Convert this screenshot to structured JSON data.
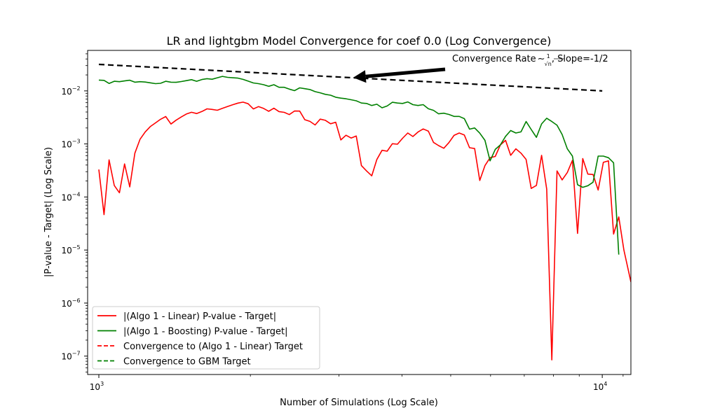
{
  "chart_data": {
    "type": "line",
    "title": "LR and lightgbm Model Convergence for coef 0.0 (Log Convergence)",
    "xlabel": "Number of Simulations (Log Scale)",
    "ylabel": "|P-value - Target| (Log Scale)",
    "xscale": "log",
    "yscale": "log",
    "xlim": [
      950,
      11400
    ],
    "ylim": [
      4.5e-08,
      0.058
    ],
    "grid": false,
    "legend_position": "lower-left",
    "x_ticks": [
      {
        "value": 1000,
        "base": "10",
        "exp": "3"
      },
      {
        "value": 10000,
        "base": "10",
        "exp": "4"
      }
    ],
    "y_ticks": [
      {
        "value": 1e-07,
        "base": "10",
        "exp": "−7"
      },
      {
        "value": 1e-06,
        "base": "10",
        "exp": "−6"
      },
      {
        "value": 1e-05,
        "base": "10",
        "exp": "−5"
      },
      {
        "value": 0.0001,
        "base": "10",
        "exp": "−4"
      },
      {
        "value": 0.001,
        "base": "10",
        "exp": "−3"
      },
      {
        "value": 0.01,
        "base": "10",
        "exp": "−2"
      }
    ],
    "series": [
      {
        "name": "|(Algo 1 - Linear) P-value - Target|",
        "color": "#ff0000",
        "style": "solid",
        "points": [
          [
            1000,
            0.00033
          ],
          [
            1024,
            4.65e-05
          ],
          [
            1048,
            0.0005
          ],
          [
            1073,
            0.000165
          ],
          [
            1099,
            0.00012
          ],
          [
            1125,
            0.00042
          ],
          [
            1152,
            0.000155
          ],
          [
            1179,
            0.00067
          ],
          [
            1207,
            0.00122
          ],
          [
            1236,
            0.00168
          ],
          [
            1265,
            0.00212
          ],
          [
            1296,
            0.0025
          ],
          [
            1326,
            0.00292
          ],
          [
            1358,
            0.00328
          ],
          [
            1391,
            0.00237
          ],
          [
            1424,
            0.0028
          ],
          [
            1458,
            0.00322
          ],
          [
            1492,
            0.00366
          ],
          [
            1528,
            0.00395
          ],
          [
            1564,
            0.00374
          ],
          [
            1602,
            0.00409
          ],
          [
            1640,
            0.00458
          ],
          [
            1679,
            0.00448
          ],
          [
            1719,
            0.00432
          ],
          [
            1760,
            0.00468
          ],
          [
            1802,
            0.00508
          ],
          [
            1845,
            0.00548
          ],
          [
            1889,
            0.00588
          ],
          [
            1934,
            0.00614
          ],
          [
            1980,
            0.00573
          ],
          [
            2027,
            0.00457
          ],
          [
            2075,
            0.00505
          ],
          [
            2125,
            0.00467
          ],
          [
            2175,
            0.00412
          ],
          [
            2227,
            0.00472
          ],
          [
            2280,
            0.00408
          ],
          [
            2335,
            0.00394
          ],
          [
            2390,
            0.00357
          ],
          [
            2447,
            0.00417
          ],
          [
            2506,
            0.00416
          ],
          [
            2565,
            0.00286
          ],
          [
            2626,
            0.00266
          ],
          [
            2689,
            0.00228
          ],
          [
            2753,
            0.00293
          ],
          [
            2819,
            0.00279
          ],
          [
            2886,
            0.0024
          ],
          [
            2955,
            0.00257
          ],
          [
            3025,
            0.00119
          ],
          [
            3097,
            0.00146
          ],
          [
            3171,
            0.00129
          ],
          [
            3246,
            0.00141
          ],
          [
            3324,
            0.00039
          ],
          [
            3403,
            0.00031
          ],
          [
            3484,
            0.00025
          ],
          [
            3567,
            0.00051
          ],
          [
            3652,
            0.00076
          ],
          [
            3739,
            0.00073
          ],
          [
            3828,
            0.00101
          ],
          [
            3919,
            0.00099
          ],
          [
            4012,
            0.00128
          ],
          [
            4108,
            0.00161
          ],
          [
            4206,
            0.00138
          ],
          [
            4306,
            0.00168
          ],
          [
            4409,
            0.00192
          ],
          [
            4514,
            0.00174
          ],
          [
            4621,
            0.00107
          ],
          [
            4731,
            0.00093
          ],
          [
            4844,
            0.00083
          ],
          [
            4959,
            0.00106
          ],
          [
            5077,
            0.00145
          ],
          [
            5198,
            0.00161
          ],
          [
            5322,
            0.00147
          ],
          [
            5449,
            0.00085
          ],
          [
            5579,
            0.00082
          ],
          [
            5711,
            0.000205
          ],
          [
            5847,
            0.00039
          ],
          [
            5987,
            0.00055
          ],
          [
            6129,
            0.00058
          ],
          [
            6275,
            0.00096
          ],
          [
            6425,
            0.00117
          ],
          [
            6578,
            0.00061
          ],
          [
            6735,
            0.00081
          ],
          [
            6895,
            0.00067
          ],
          [
            7059,
            0.00051
          ],
          [
            7227,
            0.000145
          ],
          [
            7400,
            0.000165
          ],
          [
            7576,
            0.00061
          ],
          [
            7756,
            0.00014
          ],
          [
            7941,
            8.5e-08
          ],
          [
            8130,
            0.00031
          ],
          [
            8324,
            0.00021
          ],
          [
            8522,
            0.00029
          ],
          [
            8725,
            0.00049
          ],
          [
            8933,
            2.05e-05
          ],
          [
            9146,
            0.00053
          ],
          [
            9364,
            0.00027
          ],
          [
            9587,
            0.000265
          ],
          [
            9815,
            0.000135
          ],
          [
            10049,
            0.00045
          ],
          [
            10288,
            0.00048
          ],
          [
            10533,
            2e-05
          ],
          [
            10784,
            4.2e-05
          ],
          [
            11041,
            1e-05
          ],
          [
            11400,
            2.5e-06
          ]
        ]
      },
      {
        "name": "|(Algo 1 - Boosting) P-value - Target|",
        "color": "#008000",
        "style": "solid",
        "points": [
          [
            1000,
            0.016
          ],
          [
            1024,
            0.0158
          ],
          [
            1048,
            0.0138
          ],
          [
            1073,
            0.0152
          ],
          [
            1099,
            0.0149
          ],
          [
            1125,
            0.0154
          ],
          [
            1152,
            0.0159
          ],
          [
            1179,
            0.0146
          ],
          [
            1207,
            0.0149
          ],
          [
            1236,
            0.0147
          ],
          [
            1265,
            0.0142
          ],
          [
            1296,
            0.0137
          ],
          [
            1326,
            0.0139
          ],
          [
            1358,
            0.0152
          ],
          [
            1391,
            0.0146
          ],
          [
            1424,
            0.0145
          ],
          [
            1458,
            0.015
          ],
          [
            1492,
            0.0156
          ],
          [
            1528,
            0.0163
          ],
          [
            1564,
            0.0152
          ],
          [
            1602,
            0.0164
          ],
          [
            1640,
            0.017
          ],
          [
            1679,
            0.0166
          ],
          [
            1719,
            0.0177
          ],
          [
            1760,
            0.0188
          ],
          [
            1802,
            0.018
          ],
          [
            1845,
            0.0177
          ],
          [
            1889,
            0.0174
          ],
          [
            1934,
            0.0165
          ],
          [
            1980,
            0.0153
          ],
          [
            2027,
            0.0141
          ],
          [
            2075,
            0.0137
          ],
          [
            2125,
            0.0131
          ],
          [
            2175,
            0.0122
          ],
          [
            2227,
            0.0131
          ],
          [
            2280,
            0.0117
          ],
          [
            2335,
            0.0117
          ],
          [
            2390,
            0.0108
          ],
          [
            2447,
            0.0101
          ],
          [
            2506,
            0.0114
          ],
          [
            2565,
            0.011
          ],
          [
            2626,
            0.0106
          ],
          [
            2689,
            0.0097
          ],
          [
            2753,
            0.0092
          ],
          [
            2819,
            0.0086
          ],
          [
            2886,
            0.0083
          ],
          [
            2955,
            0.0076
          ],
          [
            3025,
            0.0073
          ],
          [
            3097,
            0.0071
          ],
          [
            3171,
            0.0068
          ],
          [
            3246,
            0.0065
          ],
          [
            3324,
            0.0059
          ],
          [
            3403,
            0.0058
          ],
          [
            3484,
            0.0053
          ],
          [
            3567,
            0.0056
          ],
          [
            3652,
            0.0048
          ],
          [
            3739,
            0.0052
          ],
          [
            3828,
            0.0061
          ],
          [
            3919,
            0.0059
          ],
          [
            4012,
            0.0058
          ],
          [
            4108,
            0.0062
          ],
          [
            4206,
            0.0055
          ],
          [
            4306,
            0.0053
          ],
          [
            4409,
            0.0055
          ],
          [
            4514,
            0.0046
          ],
          [
            4621,
            0.0043
          ],
          [
            4731,
            0.0037
          ],
          [
            4844,
            0.0038
          ],
          [
            4959,
            0.0036
          ],
          [
            5077,
            0.0033
          ],
          [
            5198,
            0.0033
          ],
          [
            5322,
            0.003
          ],
          [
            5449,
            0.0019
          ],
          [
            5579,
            0.002
          ],
          [
            5711,
            0.0016
          ],
          [
            5847,
            0.00117
          ],
          [
            5987,
            0.00048
          ],
          [
            6129,
            0.00079
          ],
          [
            6275,
            0.00096
          ],
          [
            6425,
            0.00139
          ],
          [
            6578,
            0.00179
          ],
          [
            6735,
            0.00161
          ],
          [
            6895,
            0.00169
          ],
          [
            7059,
            0.00265
          ],
          [
            7227,
            0.00187
          ],
          [
            7400,
            0.00133
          ],
          [
            7576,
            0.00239
          ],
          [
            7756,
            0.00305
          ],
          [
            7941,
            0.00265
          ],
          [
            8130,
            0.00225
          ],
          [
            8324,
            0.00151
          ],
          [
            8522,
            0.00081
          ],
          [
            8725,
            0.00059
          ],
          [
            8933,
            0.00017
          ],
          [
            9146,
            0.000152
          ],
          [
            9364,
            0.000163
          ],
          [
            9587,
            0.00019
          ],
          [
            9815,
            0.00059
          ],
          [
            10049,
            0.00059
          ],
          [
            10288,
            0.00055
          ],
          [
            10533,
            0.00044
          ],
          [
            10784,
            8.2e-06
          ]
        ]
      },
      {
        "name": "Convergence to (Algo 1 - Linear) Target",
        "color": "#ff0000",
        "style": "dashed",
        "points": []
      },
      {
        "name": "Convergence to GBM Target",
        "color": "#008000",
        "style": "dashed",
        "points": []
      }
    ],
    "reference_line": {
      "color": "#000000",
      "style": "dashed",
      "points": [
        [
          1000,
          0.0316
        ],
        [
          10000,
          0.01
        ]
      ]
    },
    "annotation": {
      "text_prefix": "Convergence Rate",
      "symbol": "∼",
      "frac_num": "1",
      "frac_den": "√n",
      "text_suffix": ", Slope=-1/2",
      "arrow_target": [
        3200,
        0.0178
      ]
    }
  }
}
